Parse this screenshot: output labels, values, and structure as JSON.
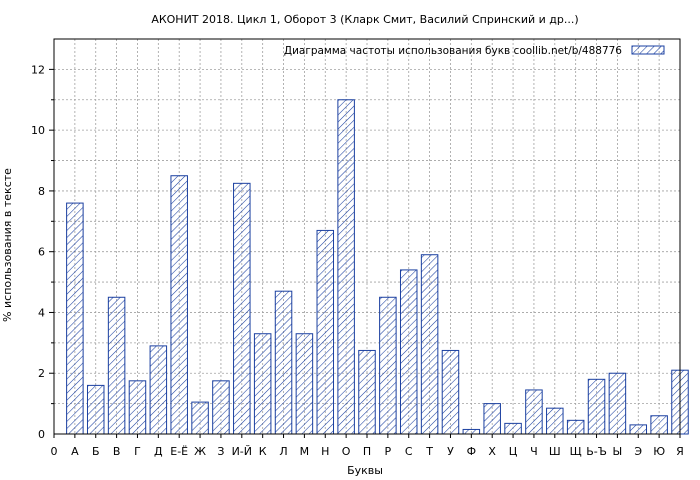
{
  "chart_data": {
    "type": "bar",
    "title": "АКОНИТ 2018. Цикл 1, Оборот 3 (Кларк Смит, Василий Спринский и др...)",
    "xlabel": "Буквы",
    "ylabel": "% использования в тексте",
    "legend": "Диаграмма частоты использования букв  coollib.net/b/488776",
    "legend_position": "top-right",
    "grid": true,
    "ylim": [
      0,
      13
    ],
    "yticks": [
      0,
      2,
      4,
      6,
      8,
      10,
      12
    ],
    "x_start_label": "0",
    "categories": [
      "А",
      "Б",
      "В",
      "Г",
      "Д",
      "Е-Ё",
      "Ж",
      "З",
      "И-Й",
      "К",
      "Л",
      "М",
      "Н",
      "О",
      "П",
      "Р",
      "С",
      "Т",
      "У",
      "Ф",
      "Х",
      "Ц",
      "Ч",
      "Ш",
      "Щ",
      "Ь-Ъ",
      "Ы",
      "Э",
      "Ю",
      "Я"
    ],
    "values": [
      7.6,
      1.6,
      4.5,
      1.75,
      2.9,
      8.5,
      1.05,
      1.75,
      8.25,
      3.3,
      4.7,
      3.3,
      6.7,
      11.0,
      2.75,
      4.5,
      5.4,
      5.9,
      2.75,
      0.15,
      1.0,
      0.35,
      1.45,
      0.85,
      0.45,
      1.8,
      2.0,
      0.3,
      0.6,
      2.1
    ],
    "colors": {
      "bar_stroke": "#1a3fa0",
      "hatch": "#1a3fa0",
      "grid": "#a0a0a0",
      "axis": "#000000"
    }
  }
}
